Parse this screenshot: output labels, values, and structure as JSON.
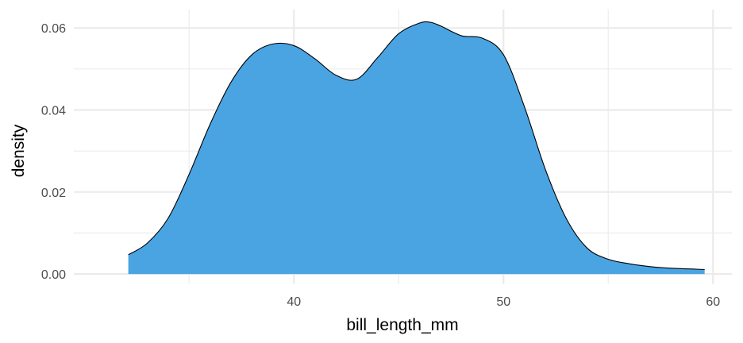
{
  "chart_data": {
    "type": "area",
    "title": "",
    "xlabel": "bill_length_mm",
    "ylabel": "density",
    "xlim": [
      29.5,
      60.9
    ],
    "ylim": [
      -0.0025,
      0.0645
    ],
    "x_ticks": [
      40,
      50,
      60
    ],
    "x_tick_labels": [
      "40",
      "50",
      "60"
    ],
    "y_ticks": [
      0,
      0.02,
      0.04,
      0.06
    ],
    "y_tick_labels": [
      "0.00",
      "0.02",
      "0.04",
      "0.06"
    ],
    "grid": true,
    "colors": {
      "fill": "#4aa4e2",
      "outline": "#000000",
      "grid": "#ebebeb"
    },
    "series": [
      {
        "x": [
          32.1,
          33,
          34,
          35,
          36,
          37,
          38,
          39,
          40,
          41,
          42,
          43,
          44,
          45,
          46,
          46.5,
          47,
          48,
          49,
          50,
          51,
          52,
          53,
          54,
          55,
          56,
          57,
          58,
          59.6
        ],
        "values": [
          0.0047,
          0.0075,
          0.0136,
          0.0243,
          0.0365,
          0.0468,
          0.0535,
          0.0561,
          0.0557,
          0.0525,
          0.0485,
          0.0475,
          0.0528,
          0.0586,
          0.0612,
          0.0614,
          0.0605,
          0.0581,
          0.0575,
          0.0535,
          0.0408,
          0.0255,
          0.0135,
          0.0063,
          0.0036,
          0.0025,
          0.0018,
          0.0014,
          0.0011
        ]
      }
    ]
  }
}
